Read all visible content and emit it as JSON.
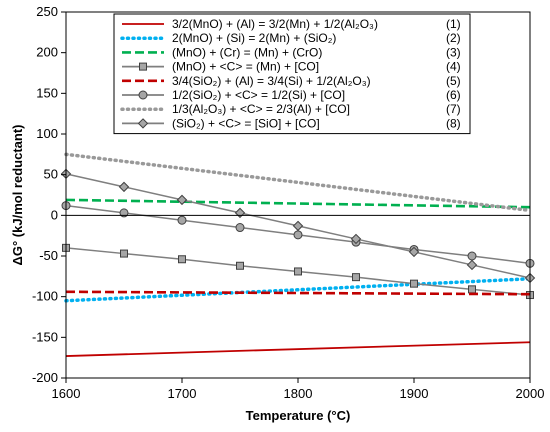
{
  "chart_data": {
    "type": "line",
    "title": "",
    "xlabel": "Temperature (°C)",
    "ylabel": "ΔG° (kJ/mol reductant)",
    "xlim": [
      1600,
      2000
    ],
    "ylim": [
      -200,
      250
    ],
    "xticks": [
      1600,
      1700,
      1800,
      1900,
      2000
    ],
    "yticks": [
      -200,
      -150,
      -100,
      -50,
      0,
      50,
      100,
      150,
      200,
      250
    ],
    "grid": false,
    "legend_position": "top",
    "series": [
      {
        "name": "3/2(MnO) + (Al) = 3/2(Mn) + 1/2(Al₂O₃)",
        "number": "(1)",
        "color": "#c00000",
        "style": "solid",
        "marker": "none",
        "x": [
          1600,
          2000
        ],
        "y": [
          -173,
          -156
        ]
      },
      {
        "name": "2(MnO) + (Si) = 2(Mn) + (SiO₂)",
        "number": "(2)",
        "color": "#00b0f0",
        "style": "dotted",
        "marker": "none",
        "x": [
          1600,
          2000
        ],
        "y": [
          -105,
          -78
        ]
      },
      {
        "name": "(MnO) + (Cr) = (Mn) + (CrO)",
        "number": "(3)",
        "color": "#00b050",
        "style": "dashed",
        "marker": "none",
        "x": [
          1600,
          2000
        ],
        "y": [
          19,
          10
        ]
      },
      {
        "name": "(MnO) + <C> = (Mn) + [CO]",
        "number": "(4)",
        "color": "#7f7f7f",
        "style": "solid",
        "marker": "square",
        "x": [
          1600,
          1650,
          1700,
          1750,
          1800,
          1850,
          1900,
          1950,
          2000
        ],
        "y": [
          -40,
          -47,
          -54,
          -62,
          -69,
          -76,
          -84,
          -91,
          -98
        ]
      },
      {
        "name": "3/4(SiO₂) + (Al) = 3/4(Si) + 1/2(Al₂O₃)",
        "number": "(5)",
        "color": "#c00000",
        "style": "dashed",
        "marker": "none",
        "x": [
          1600,
          2000
        ],
        "y": [
          -94,
          -97
        ]
      },
      {
        "name": "1/2(SiO₂) + <C> = 1/2(Si) + [CO]",
        "number": "(6)",
        "color": "#7f7f7f",
        "style": "solid",
        "marker": "circle",
        "x": [
          1600,
          1650,
          1700,
          1750,
          1800,
          1850,
          1900,
          1950,
          2000
        ],
        "y": [
          12,
          3,
          -6,
          -15,
          -24,
          -33,
          -42,
          -50,
          -59
        ]
      },
      {
        "name": "1/3(Al₂O₃) + <C> = 2/3(Al) + [CO]",
        "number": "(7)",
        "color": "#999999",
        "style": "dotted",
        "marker": "none",
        "x": [
          1600,
          2000
        ],
        "y": [
          75,
          6
        ]
      },
      {
        "name": "(SiO₂) + <C> = [SiO] + [CO]",
        "number": "(8)",
        "color": "#7f7f7f",
        "style": "solid",
        "marker": "diamond",
        "x": [
          1600,
          1650,
          1700,
          1750,
          1800,
          1850,
          1900,
          1950,
          2000
        ],
        "y": [
          51,
          35,
          19,
          3,
          -13,
          -29,
          -45,
          -61,
          -77
        ]
      }
    ]
  }
}
